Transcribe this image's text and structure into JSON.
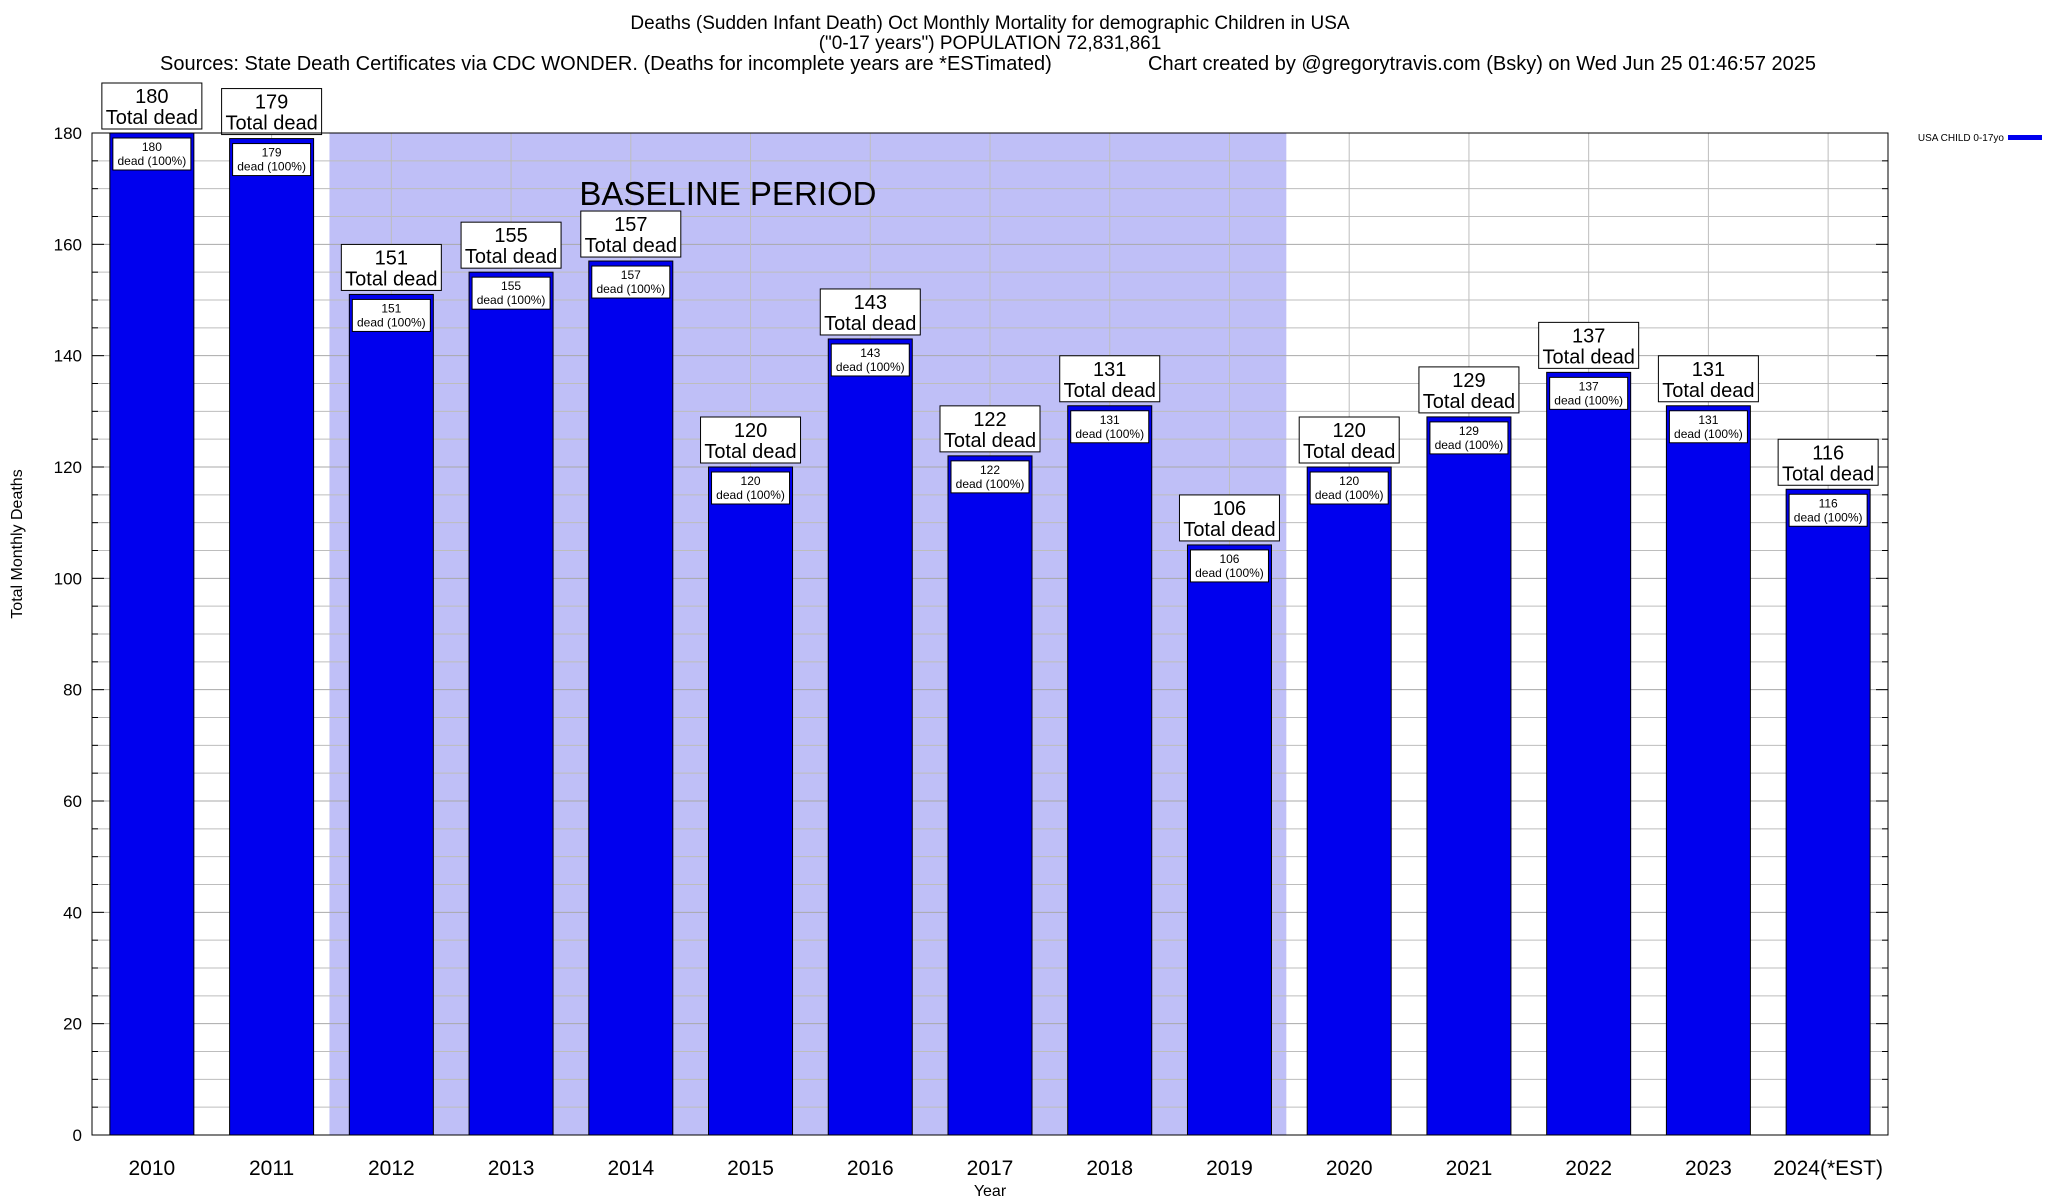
{
  "titles": {
    "line1": "Deaths (Sudden Infant Death) Oct Monthly Mortality for demographic Children in USA",
    "line2": "(\"0-17 years\") POPULATION 72,831,861",
    "sources": "Sources: State Death Certificates via CDC WONDER. (Deaths for incomplete years are *ESTimated)",
    "credit": "Chart created by @gregorytravis.com (Bsky) on Wed Jun 25 01:46:57 2025"
  },
  "chart_data": {
    "type": "bar",
    "categories": [
      "2010",
      "2011",
      "2012",
      "2013",
      "2014",
      "2015",
      "2016",
      "2017",
      "2018",
      "2019",
      "2020",
      "2021",
      "2022",
      "2023",
      "2024(*EST)"
    ],
    "series": [
      {
        "name": "USA CHILD 0-17yo",
        "values": [
          180,
          179,
          151,
          155,
          157,
          120,
          143,
          122,
          131,
          106,
          120,
          129,
          137,
          131,
          116
        ]
      }
    ],
    "xlabel": "Year",
    "ylabel": "Total Monthly Deaths",
    "ylim": [
      0,
      180
    ],
    "yticks": [
      0,
      20,
      40,
      60,
      80,
      100,
      120,
      140,
      160,
      180
    ],
    "grid": true,
    "legend_position": "top-right",
    "top_label_suffix": "Total dead",
    "inner_label_suffix": "dead (100%)",
    "baseline_period": {
      "label": "BASELINE PERIOD",
      "start": "2012",
      "end": "2019"
    },
    "colors": {
      "bar": "#0000ee",
      "baseline_fill": "#bfbff7",
      "grid": "#bdbdbd"
    }
  }
}
